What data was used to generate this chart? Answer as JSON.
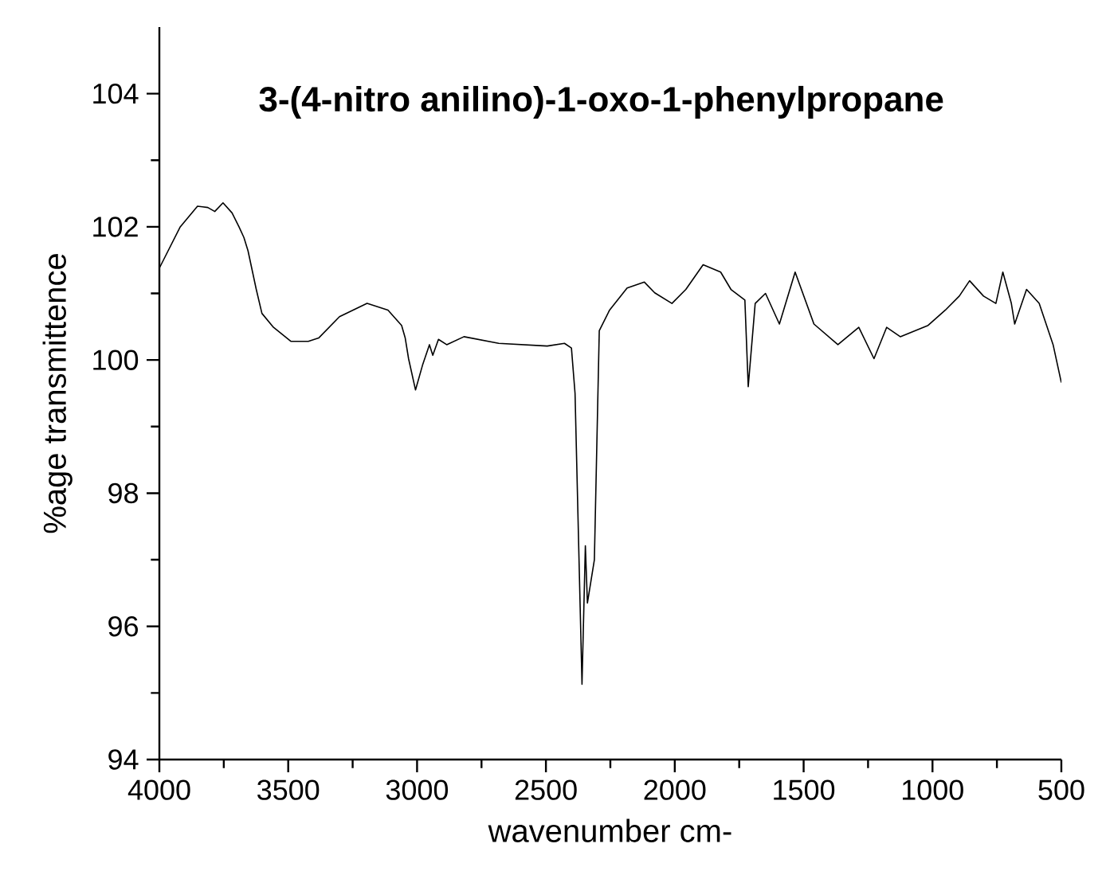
{
  "chart_data": {
    "type": "line",
    "title": "3-(4-nitro anilino)-1-oxo-1-phenylpropane",
    "xlabel": "wavenumber cm-",
    "ylabel": "%age transmittence",
    "xlim": [
      4000,
      500
    ],
    "ylim": [
      94,
      105
    ],
    "xticks": [
      4000,
      3500,
      3000,
      2500,
      2000,
      1500,
      1000,
      500
    ],
    "yticks": [
      94,
      96,
      98,
      100,
      102,
      104
    ],
    "marker": "none",
    "line_style": "solid",
    "x": [
      4000,
      3919,
      3852,
      3812,
      3785,
      3753,
      3718,
      3691,
      3672,
      3656,
      3624,
      3602,
      3557,
      3489,
      3422,
      3382,
      3301,
      3194,
      3113,
      3060,
      3046,
      3033,
      3006,
      2979,
      2952,
      2939,
      2917,
      2885,
      2818,
      2683,
      2495,
      2428,
      2401,
      2387,
      2360,
      2347,
      2339,
      2312,
      2293,
      2253,
      2185,
      2118,
      2078,
      2011,
      1957,
      1890,
      1822,
      1782,
      1728,
      1715,
      1688,
      1648,
      1594,
      1533,
      1460,
      1367,
      1286,
      1227,
      1178,
      1125,
      1017,
      950,
      896,
      856,
      802,
      754,
      727,
      694,
      681,
      635,
      586,
      532,
      500
    ],
    "series": [
      {
        "color": "#000000",
        "values": [
          101.38,
          102.0,
          102.31,
          102.29,
          102.23,
          102.36,
          102.21,
          102.0,
          101.84,
          101.64,
          101.06,
          100.7,
          100.49,
          100.28,
          100.28,
          100.33,
          100.65,
          100.85,
          100.75,
          100.52,
          100.33,
          100.02,
          99.55,
          99.92,
          100.23,
          100.07,
          100.31,
          100.23,
          100.35,
          100.25,
          100.21,
          100.25,
          100.18,
          99.5,
          95.13,
          97.21,
          96.35,
          97.0,
          100.44,
          100.75,
          101.08,
          101.17,
          101.01,
          100.85,
          101.06,
          101.43,
          101.32,
          101.06,
          100.9,
          99.6,
          100.85,
          101.0,
          100.54,
          101.32,
          100.54,
          100.23,
          100.49,
          100.02,
          100.49,
          100.35,
          100.52,
          100.75,
          100.96,
          101.19,
          100.96,
          100.85,
          101.32,
          100.85,
          100.54,
          101.06,
          100.85,
          100.23,
          99.66
        ]
      }
    ]
  }
}
